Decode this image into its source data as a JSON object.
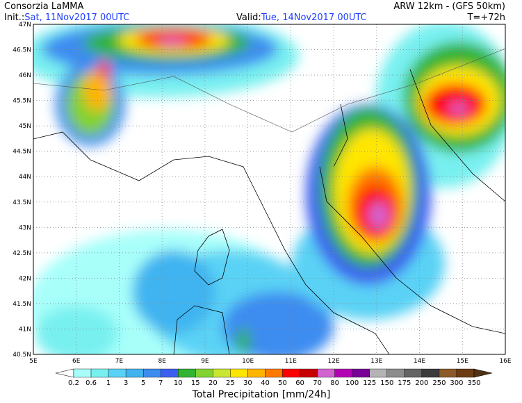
{
  "header": {
    "title": "Consorzia LaMMA",
    "init_label": "Init.:",
    "init_date": "Sat, 11Nov2017 00UTC",
    "model": "ARW 12km  -  (GFS 50km)",
    "valid_label": "Valid:",
    "valid_date": "Tue, 14Nov2017 00UTC",
    "lead": "T=+72h"
  },
  "lat_labels": [
    "47N",
    "46.5N",
    "46N",
    "45.5N",
    "45N",
    "44.5N",
    "44N",
    "43.5N",
    "43N",
    "42.5N",
    "42N",
    "41.5N",
    "41N",
    "40.5N"
  ],
  "lon_labels": [
    "5E",
    "6E",
    "7E",
    "8E",
    "9E",
    "10E",
    "11E",
    "12E",
    "13E",
    "14E",
    "15E",
    "16E"
  ],
  "colorbar": {
    "title": "Total Precipitation [mm/24h]",
    "labels": [
      "0.2",
      "0.6",
      "1",
      "3",
      "5",
      "7",
      "10",
      "15",
      "20",
      "25",
      "30",
      "40",
      "50",
      "60",
      "70",
      "80",
      "100",
      "125",
      "150",
      "175",
      "200",
      "250",
      "300",
      "350"
    ],
    "colors": [
      "#ffffff",
      "#a8fffa",
      "#78f0f0",
      "#5ad2f5",
      "#41b4f0",
      "#3c8cf0",
      "#3c5ff0",
      "#32b432",
      "#82d232",
      "#c8e632",
      "#ffe600",
      "#ffb400",
      "#ff7800",
      "#ff0000",
      "#c80000",
      "#d264d2",
      "#b400b4",
      "#780096",
      "#b4b4b4",
      "#8c8c8c",
      "#646464",
      "#3c3c3c",
      "#8c5a28",
      "#6e3c14",
      "#503214"
    ]
  }
}
